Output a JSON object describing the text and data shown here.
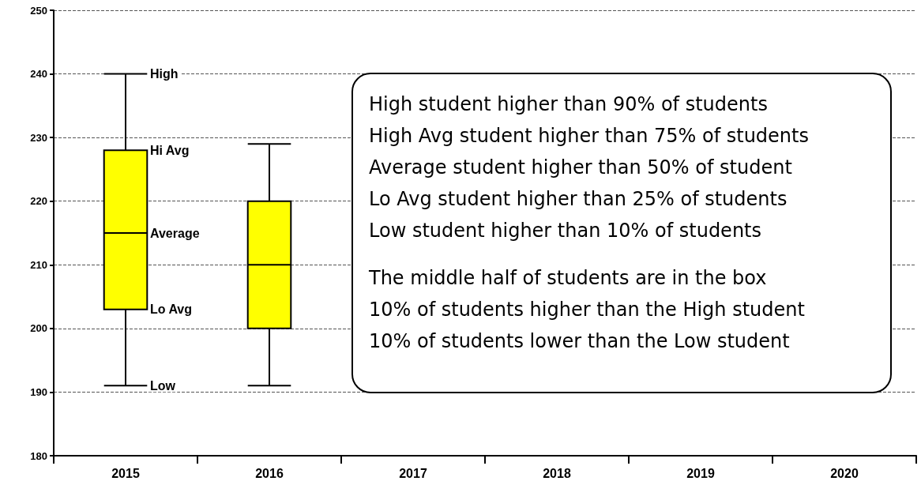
{
  "chart_data": {
    "type": "box",
    "categories": [
      "2015",
      "2016",
      "2017",
      "2018",
      "2019",
      "2020"
    ],
    "boxes": [
      {
        "low": 191,
        "q1": 203,
        "median": 215,
        "q3": 228,
        "high": 240
      },
      {
        "low": 191,
        "q1": 200,
        "median": 210,
        "q3": 220,
        "high": 229
      },
      null,
      null,
      null,
      null
    ],
    "color": "#ffff00",
    "ylim": [
      180,
      250
    ],
    "yticks": [
      180,
      190,
      200,
      210,
      220,
      230,
      240,
      250
    ],
    "grid": "y",
    "annotations": [
      {
        "text": "High",
        "x": "2015",
        "y": 240
      },
      {
        "text": "Hi Avg",
        "x": "2015",
        "y": 228
      },
      {
        "text": "Average",
        "x": "2015",
        "y": 215
      },
      {
        "text": "Lo Avg",
        "x": "2015",
        "y": 203
      },
      {
        "text": "Low",
        "x": "2015",
        "y": 191
      },
      "High student higher than 90% of students",
      "High Avg student higher than 75% of students",
      "Average student higher than 50% of student",
      "Lo Avg student higher than 25% of students",
      "Low student higher than 10% of students",
      "The middle half of students are in the box",
      "10% of students higher than the High student",
      "10% of students lower than the Low student"
    ]
  }
}
